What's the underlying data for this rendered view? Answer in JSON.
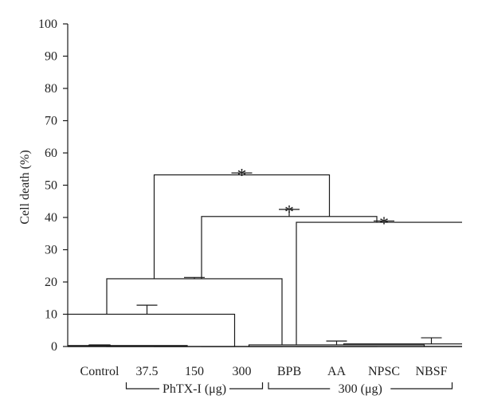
{
  "chart_data": {
    "type": "bar",
    "categories": [
      "Control",
      "37.5",
      "150",
      "300",
      "BPB",
      "AA",
      "NPSC",
      "NBSF"
    ],
    "series": [
      {
        "values": [
          0.3,
          10.0,
          21.0,
          53.2,
          40.3,
          0.5,
          38.5,
          0.8
        ],
        "errors": [
          0.2,
          2.8,
          0.4,
          0.6,
          2.2,
          1.2,
          0.4,
          1.9
        ]
      }
    ],
    "significance_marker": "*",
    "significant": [
      false,
      false,
      false,
      true,
      true,
      false,
      true,
      false
    ],
    "ylabel": "Cell death (%)",
    "ylim": [
      0,
      100
    ],
    "yticks": [
      0,
      10,
      20,
      30,
      40,
      50,
      60,
      70,
      80,
      90,
      100
    ],
    "groups": [
      {
        "label": "PhTX-I (μg)",
        "from": 1,
        "to": 3
      },
      {
        "label": "300 (μg)",
        "from": 4,
        "to": 7
      }
    ],
    "grid": false,
    "legend": "none",
    "colors": {
      "bar_fill": "#ffffff",
      "stroke": "#1a1a1a"
    }
  }
}
